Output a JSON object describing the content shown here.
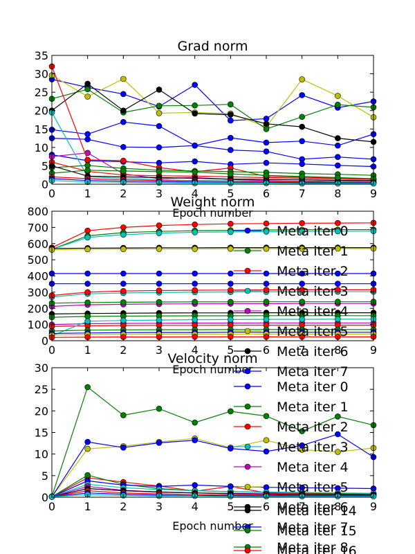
{
  "chart_data": [
    {
      "type": "line",
      "title": "Grad norm",
      "xlabel": "Epoch number",
      "ylabel": "",
      "x": [
        0,
        1,
        2,
        3,
        4,
        5,
        6,
        7,
        8,
        9
      ],
      "xlim": [
        0,
        9
      ],
      "ylim": [
        0,
        35
      ],
      "xticks": [
        0,
        1,
        2,
        3,
        4,
        5,
        6,
        7,
        8,
        9
      ],
      "yticks": [
        0,
        5,
        10,
        15,
        20,
        25,
        30,
        35
      ],
      "grid": false,
      "legend": "none",
      "series": [
        {
          "color": "#0000ff",
          "values": [
            28.5,
            26.3,
            24.5,
            21.1,
            27.0,
            17.3,
            17.8,
            24.2,
            20.8,
            22.5
          ]
        },
        {
          "color": "#bfbf00",
          "values": [
            29.6,
            23.8,
            28.6,
            19.3,
            19.5,
            19.2,
            15.6,
            28.5,
            24.0,
            18.2
          ]
        },
        {
          "color": "#008000",
          "values": [
            23.2,
            25.8,
            19.5,
            21.3,
            21.4,
            21.7,
            15.0,
            18.3,
            21.6,
            20.9
          ]
        },
        {
          "color": "#000000",
          "values": [
            20.0,
            27.3,
            20.0,
            25.7,
            19.2,
            18.9,
            16.4,
            15.6,
            12.5,
            11.5
          ]
        },
        {
          "color": "#0000ff",
          "values": [
            14.8,
            13.6,
            16.9,
            15.8,
            10.5,
            12.6,
            11.3,
            11.7,
            10.5,
            13.6
          ]
        },
        {
          "color": "#0000ff",
          "values": [
            12.5,
            12.2,
            10.1,
            10.0,
            10.5,
            9.3,
            8.9,
            6.8,
            7.4,
            6.8
          ]
        },
        {
          "color": "#0000ff",
          "values": [
            8.0,
            6.4,
            6.1,
            5.8,
            6.2,
            5.4,
            5.8,
            5.5,
            5.1,
            4.8
          ]
        },
        {
          "color": "#bf00bf",
          "values": [
            7.5,
            8.5,
            2.8,
            1.5,
            1.8,
            1.3,
            1.0,
            0.8,
            0.9,
            0.7
          ]
        },
        {
          "color": "#ff0000",
          "values": [
            32.0,
            6.6,
            6.4,
            4.5,
            3.4,
            4.4,
            2.1,
            1.9,
            1.6,
            1.3
          ]
        },
        {
          "color": "#00bfbf",
          "values": [
            19.5,
            2.0,
            1.6,
            1.2,
            1.0,
            0.9,
            0.8,
            0.7,
            0.6,
            0.5
          ]
        },
        {
          "color": "#008000",
          "values": [
            4.5,
            5.1,
            4.3,
            3.8,
            3.6,
            3.4,
            3.2,
            2.9,
            2.7,
            2.4
          ]
        },
        {
          "color": "#ff0000",
          "values": [
            6.0,
            3.5,
            2.5,
            2.3,
            2.2,
            2.0,
            1.8,
            1.6,
            1.5,
            1.3
          ]
        },
        {
          "color": "#000000",
          "values": [
            5.0,
            2.2,
            2.0,
            1.8,
            1.6,
            1.4,
            1.3,
            1.2,
            1.1,
            1.0
          ]
        },
        {
          "color": "#008000",
          "values": [
            3.0,
            3.8,
            3.6,
            3.4,
            3.3,
            2.8,
            2.4,
            2.1,
            1.8,
            1.5
          ]
        },
        {
          "color": "#ff0000",
          "values": [
            2.0,
            1.5,
            1.2,
            1.0,
            0.9,
            0.8,
            0.7,
            0.6,
            0.5,
            0.5
          ]
        },
        {
          "color": "#0000ff",
          "values": [
            1.5,
            1.0,
            0.8,
            0.7,
            0.6,
            0.5,
            0.5,
            0.4,
            0.4,
            0.3
          ]
        },
        {
          "color": "#00bfbf",
          "values": [
            1.0,
            0.6,
            0.5,
            0.4,
            0.3,
            0.3,
            0.3,
            0.2,
            0.2,
            0.2
          ]
        }
      ]
    },
    {
      "type": "line",
      "title": "Weight norm",
      "xlabel": "Epoch number",
      "ylabel": "",
      "x": [
        0,
        1,
        2,
        3,
        4,
        5,
        6,
        7,
        8,
        9
      ],
      "xlim": [
        0,
        9
      ],
      "ylim": [
        0,
        800
      ],
      "xticks": [
        0,
        1,
        2,
        3,
        4,
        5,
        6,
        7,
        8,
        9
      ],
      "yticks": [
        0,
        100,
        200,
        300,
        400,
        500,
        600,
        700,
        800
      ],
      "grid": false,
      "legend": "right",
      "legend_entries": [
        {
          "label": "Meta iter 0",
          "color": "#0000ff"
        },
        {
          "label": "Meta iter 1",
          "color": "#008000"
        },
        {
          "label": "Meta iter 2",
          "color": "#ff0000"
        },
        {
          "label": "Meta iter 3",
          "color": "#00bfbf"
        },
        {
          "label": "Meta iter 4",
          "color": "#bf00bf"
        },
        {
          "label": "Meta iter 5",
          "color": "#bfbf00"
        },
        {
          "label": "Meta iter 6",
          "color": "#000000"
        },
        {
          "label": "Meta iter 7",
          "color": "#0000ff"
        }
      ],
      "series": [
        {
          "color": "#ff0000",
          "values": [
            575,
            680,
            700,
            712,
            718,
            722,
            724,
            726,
            727,
            728
          ]
        },
        {
          "color": "#008000",
          "values": [
            565,
            648,
            668,
            675,
            680,
            682,
            684,
            685,
            686,
            686
          ]
        },
        {
          "color": "#00bfbf",
          "values": [
            565,
            638,
            655,
            665,
            670,
            672,
            674,
            675,
            676,
            677
          ]
        },
        {
          "color": "#000000",
          "values": [
            570,
            572,
            573,
            574,
            574,
            575,
            575,
            575,
            575,
            575
          ]
        },
        {
          "color": "#bfbf00",
          "values": [
            562,
            565,
            566,
            567,
            567,
            568,
            568,
            568,
            569,
            569
          ]
        },
        {
          "color": "#0000ff",
          "values": [
            415,
            415,
            415,
            415,
            415,
            415,
            415,
            415,
            415,
            415
          ]
        },
        {
          "color": "#0000ff",
          "values": [
            352,
            352,
            352,
            352,
            352,
            352,
            352,
            352,
            352,
            352
          ]
        },
        {
          "color": "#00bfbf",
          "values": [
            270,
            290,
            295,
            298,
            300,
            301,
            302,
            302,
            303,
            303
          ]
        },
        {
          "color": "#ff0000",
          "values": [
            280,
            300,
            307,
            310,
            312,
            313,
            314,
            315,
            315,
            315
          ]
        },
        {
          "color": "#bf00bf",
          "values": [
            212,
            222,
            225,
            227,
            228,
            229,
            229,
            230,
            230,
            230
          ]
        },
        {
          "color": "#008000",
          "values": [
            232,
            236,
            238,
            239,
            240,
            240,
            241,
            241,
            241,
            241
          ]
        },
        {
          "color": "#000000",
          "values": [
            165,
            168,
            170,
            171,
            172,
            172,
            173,
            173,
            173,
            173
          ]
        },
        {
          "color": "#008000",
          "values": [
            145,
            150,
            152,
            153,
            154,
            154,
            155,
            155,
            155,
            155
          ]
        },
        {
          "color": "#bf00bf",
          "values": [
            100,
            105,
            107,
            108,
            109,
            109,
            110,
            110,
            110,
            110
          ]
        },
        {
          "color": "#ff0000",
          "values": [
            88,
            92,
            94,
            95,
            95,
            96,
            96,
            96,
            96,
            96
          ]
        },
        {
          "color": "#00bfbf",
          "values": [
            30,
            120,
            125,
            128,
            130,
            131,
            132,
            132,
            133,
            133
          ]
        },
        {
          "color": "#008000",
          "values": [
            60,
            65,
            67,
            68,
            68,
            69,
            69,
            69,
            69,
            69
          ]
        },
        {
          "color": "#0000ff",
          "values": [
            45,
            48,
            50,
            51,
            51,
            52,
            52,
            52,
            52,
            52
          ]
        },
        {
          "color": "#bfbf00",
          "values": [
            35,
            38,
            39,
            40,
            40,
            40,
            41,
            41,
            41,
            41
          ]
        },
        {
          "color": "#ff0000",
          "values": [
            20,
            22,
            23,
            23,
            24,
            24,
            24,
            24,
            24,
            24
          ]
        }
      ]
    },
    {
      "type": "line",
      "title": "Velocity norm",
      "xlabel": "Epoch number",
      "ylabel": "",
      "x": [
        0,
        1,
        2,
        3,
        4,
        5,
        6,
        7,
        8,
        9
      ],
      "xlim": [
        0,
        9
      ],
      "ylim": [
        0,
        30
      ],
      "xticks": [
        0,
        1,
        2,
        3,
        4,
        5,
        6,
        7,
        8,
        9
      ],
      "yticks": [
        0,
        5,
        10,
        15,
        20,
        25,
        30
      ],
      "grid": false,
      "legend": "right",
      "legend_entries": [
        {
          "label": "Meta iter 0",
          "color": "#0000ff"
        },
        {
          "label": "Meta iter 1",
          "color": "#008000"
        },
        {
          "label": "Meta iter 2",
          "color": "#ff0000"
        },
        {
          "label": "Meta iter 3",
          "color": "#00bfbf"
        },
        {
          "label": "Meta iter 4",
          "color": "#bf00bf"
        },
        {
          "label": "Meta iter 5",
          "color": "#bfbf00"
        },
        {
          "label": "Meta iter 6",
          "color": "#000000"
        },
        {
          "label": "Meta iter 7",
          "color": "#0000ff"
        },
        {
          "label": "Meta iter 8",
          "color": "#008000"
        }
      ],
      "legend_entries_extra": [
        {
          "label": "Meta iter 14",
          "color": "#000000"
        },
        {
          "label": "Meta iter 15",
          "color": "#008000"
        },
        {
          "label": "Meta iter 16",
          "color": "#ff0000"
        }
      ],
      "series": [
        {
          "color": "#008000",
          "values": [
            0.2,
            25.5,
            19.0,
            20.5,
            17.3,
            19.9,
            18.8,
            15.3,
            18.7,
            16.7
          ]
        },
        {
          "color": "#bfbf00",
          "values": [
            0.1,
            11.2,
            11.8,
            12.8,
            13.6,
            11.5,
            13.2,
            11.0,
            10.5,
            11.4
          ]
        },
        {
          "color": "#0000ff",
          "values": [
            0.1,
            12.8,
            11.5,
            12.6,
            13.2,
            11.3,
            10.6,
            12.0,
            14.6,
            9.3
          ]
        },
        {
          "color": "#ff0000",
          "values": [
            0.1,
            4.5,
            3.5,
            2.6,
            1.4,
            2.5,
            1.0,
            0.9,
            0.8,
            0.8
          ]
        },
        {
          "color": "#008000",
          "values": [
            0.1,
            5.1,
            3.0,
            2.0,
            1.5,
            1.3,
            1.1,
            1.0,
            0.9,
            0.8
          ]
        },
        {
          "color": "#0000ff",
          "values": [
            0.1,
            3.8,
            2.8,
            2.5,
            2.8,
            2.5,
            2.3,
            2.2,
            2.1,
            2.0
          ]
        },
        {
          "color": "#00bfbf",
          "values": [
            0.1,
            3.0,
            2.2,
            1.8,
            1.5,
            1.3,
            1.2,
            1.1,
            1.0,
            0.9
          ]
        },
        {
          "color": "#bf00bf",
          "values": [
            0.1,
            2.5,
            1.6,
            1.2,
            1.0,
            0.9,
            0.8,
            0.7,
            0.7,
            0.6
          ]
        },
        {
          "color": "#000000",
          "values": [
            0.1,
            2.0,
            1.5,
            1.2,
            1.0,
            0.8,
            0.7,
            0.6,
            0.6,
            0.5
          ]
        },
        {
          "color": "#ff0000",
          "values": [
            0.1,
            1.5,
            1.0,
            0.8,
            0.6,
            0.5,
            0.5,
            0.4,
            0.4,
            0.4
          ]
        },
        {
          "color": "#0000ff",
          "values": [
            0.1,
            1.0,
            0.7,
            0.5,
            0.4,
            0.4,
            0.3,
            0.3,
            0.3,
            0.3
          ]
        },
        {
          "color": "#00bfbf",
          "values": [
            0.1,
            0.6,
            0.4,
            0.3,
            0.3,
            0.2,
            0.2,
            0.2,
            0.2,
            0.2
          ]
        }
      ]
    }
  ]
}
